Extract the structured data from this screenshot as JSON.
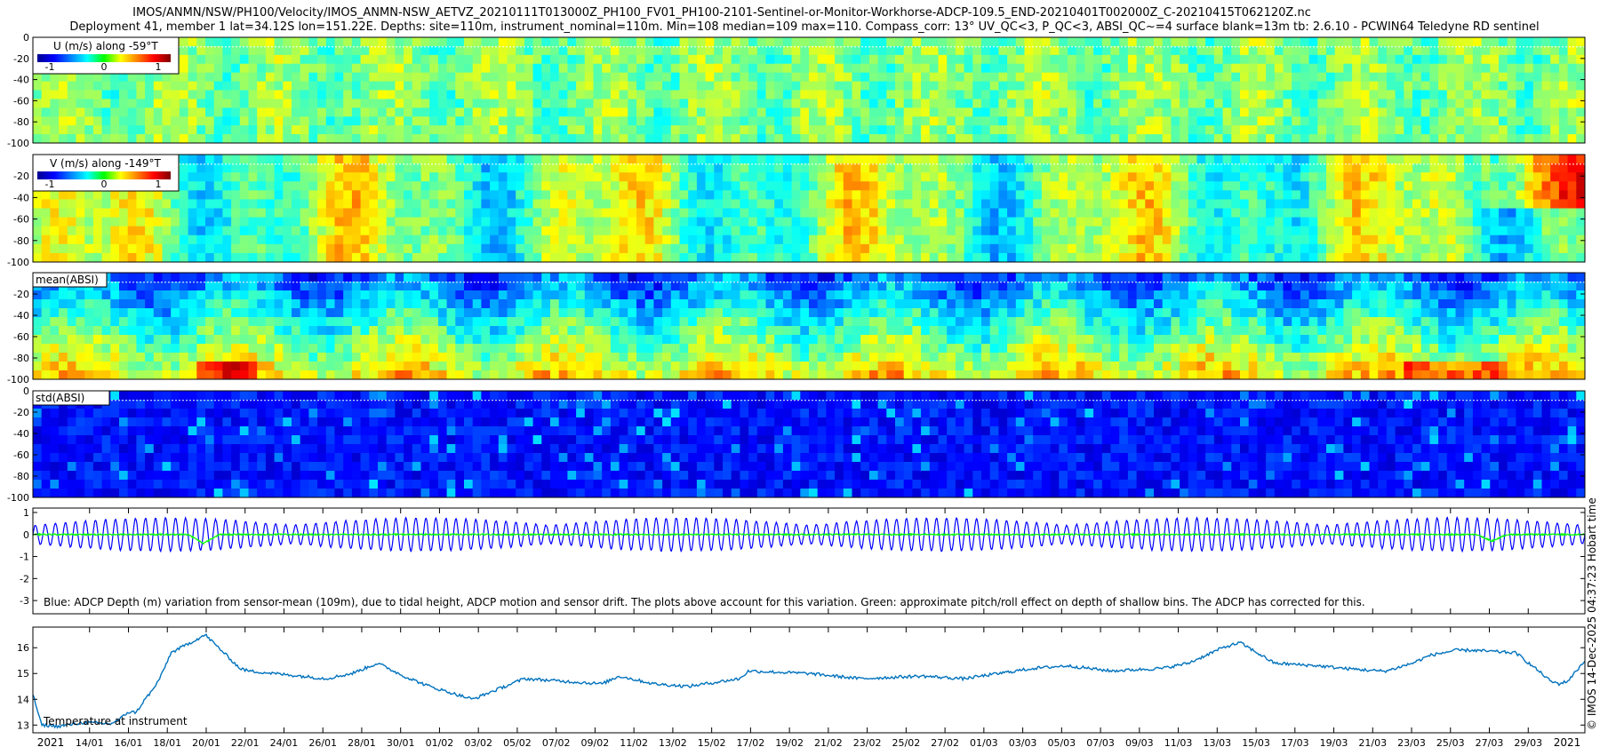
{
  "header": {
    "line1": "IMOS/ANMN/NSW/PH100/Velocity/IMOS_ANMN-NSW_AETVZ_20210111T013000Z_PH100_FV01_PH100-2101-Sentinel-or-Monitor-Workhorse-ADCP-109.5_END-20210401T002000Z_C-20210415T062120Z.nc",
    "line2": "Deployment 41, member 1 lat=34.12S lon=151.22E. Depths: site=110m, instrument_nominal=110m. Min=108 median=109 max=110. Compass_corr: 13° UV_QC<3, P_QC<3, ABSI_QC~=4 surface blank=13m tb: 2.6.10 - PCWIN64 Teledyne RD sentinel"
  },
  "side_note": "© IMOS 14-Dec-2025 04:37:23 Hobart time",
  "colors": {
    "jet_low": "#00008f",
    "jet_mid": "#00ff00",
    "jet_high": "#800000",
    "depth_line": "#0000ff",
    "pitch_roll_line": "#00ff00",
    "temperature_line": "#0072bd"
  },
  "chart_data": [
    {
      "type": "heatmap",
      "name": "u-velocity",
      "label": "U (m/s) along -59°T",
      "colorbar_ticks": [
        "-1",
        "0",
        "1"
      ],
      "y_ticks": [
        "0",
        "-20",
        "-40",
        "-60",
        "-80",
        "-100"
      ],
      "ylim": [
        -100,
        0
      ],
      "clim": [
        -1.2,
        1.2
      ],
      "typical_value": 0.0
    },
    {
      "type": "heatmap",
      "name": "v-velocity",
      "label": "V (m/s) along -149°T",
      "colorbar_ticks": [
        "-1",
        "0",
        "1"
      ],
      "y_ticks": [
        "-20",
        "-40",
        "-60",
        "-80",
        "-100"
      ],
      "ylim": [
        -100,
        0
      ],
      "clim": [
        -1.2,
        1.2
      ],
      "typical_value": 0.05
    },
    {
      "type": "heatmap",
      "name": "mean-absi",
      "label": "mean(ABSI)",
      "y_ticks": [
        "-20",
        "-40",
        "-60",
        "-80",
        "-100"
      ],
      "ylim": [
        -100,
        0
      ]
    },
    {
      "type": "heatmap",
      "name": "std-absi",
      "label": "std(ABSI)",
      "y_ticks": [
        "0",
        "-20",
        "-40",
        "-60",
        "-80",
        "-100"
      ],
      "ylim": [
        -100,
        0
      ]
    },
    {
      "type": "line",
      "name": "depth-variation",
      "caption": "Blue: ADCP Depth (m) variation from sensor-mean (109m), due to tidal height, ADCP motion and sensor drift. The plots above account for this variation. Green: approximate pitch/roll effect on depth of shallow bins. The ADCP has corrected for this.",
      "y_ticks": [
        "1",
        "0",
        "-1",
        "-2",
        "-3"
      ],
      "ylim": [
        -3.6,
        1.2
      ],
      "tidal_amplitude": 0.75,
      "tidal_cycles": 155
    },
    {
      "type": "line",
      "name": "temperature",
      "label": "Temperature at instrument",
      "y_ticks": [
        "16",
        "15",
        "14",
        "13"
      ],
      "ylim": [
        12.7,
        16.8
      ],
      "x_keypoints": [
        0,
        1,
        3,
        6,
        9,
        10,
        11,
        12,
        13,
        14,
        15,
        16,
        20,
        24,
        25,
        28,
        34,
        37,
        40,
        43,
        46,
        51,
        57,
        66,
        68,
        72,
        76,
        82,
        83,
        90,
        96,
        103,
        108,
        116,
        120,
        125,
        131,
        134,
        138,
        140,
        142,
        144,
        149,
        152,
        156,
        157,
        158,
        160,
        162,
        165,
        167,
        172,
        175,
        176,
        177,
        178,
        180
      ],
      "y_keypoints": [
        14.2,
        13.0,
        12.95,
        13.1,
        13.05,
        13.2,
        13.5,
        13.5,
        14.0,
        14.4,
        15.0,
        15.8,
        16.5,
        15.2,
        15.1,
        15.0,
        14.8,
        15.0,
        15.4,
        14.9,
        14.5,
        14.0,
        14.8,
        14.6,
        14.9,
        14.6,
        14.5,
        14.8,
        15.1,
        15.0,
        14.8,
        14.9,
        14.8,
        15.2,
        15.3,
        15.1,
        15.2,
        15.4,
        16.0,
        16.2,
        15.8,
        15.4,
        15.3,
        15.2,
        15.1,
        15.1,
        15.2,
        15.4,
        15.7,
        15.9,
        15.9,
        15.8,
        15.0,
        14.7,
        14.6,
        14.7,
        15.5
      ]
    }
  ],
  "x_axis": {
    "labels": [
      "2021",
      "14/01",
      "16/01",
      "18/01",
      "20/01",
      "22/01",
      "24/01",
      "26/01",
      "28/01",
      "30/01",
      "01/02",
      "03/02",
      "05/02",
      "07/02",
      "09/02",
      "11/02",
      "13/02",
      "15/02",
      "17/02",
      "19/02",
      "21/02",
      "23/02",
      "25/02",
      "27/02",
      "01/03",
      "03/03",
      "05/03",
      "07/03",
      "09/03",
      "11/03",
      "13/03",
      "15/03",
      "17/03",
      "19/03",
      "21/03",
      "23/03",
      "25/03",
      "27/03",
      "29/03",
      "2021"
    ]
  }
}
